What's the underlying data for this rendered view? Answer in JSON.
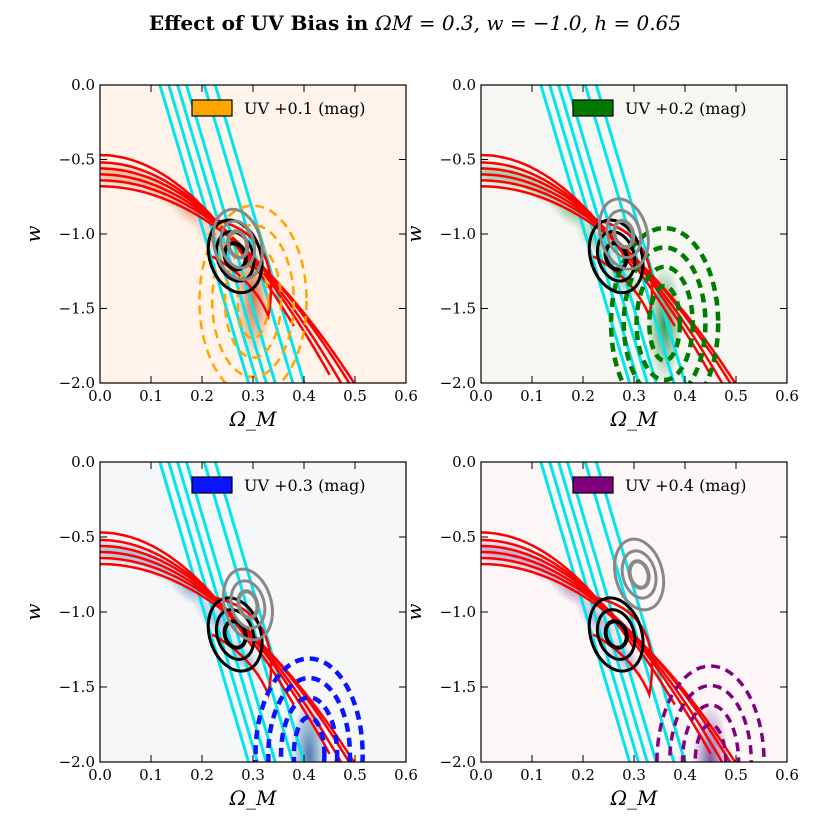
{
  "figure": {
    "title": "Effect of UV Bias in Ω_M = 0.3, w = −1.0, h = 0.65",
    "title_parts": {
      "bold": "Effect of UV Bias in ",
      "math": "ΩM = 0.3, w = −1.0, h = 0.65"
    }
  },
  "chart_data": [
    {
      "type": "contour",
      "panel": "top-left",
      "xlabel": "Ω_M",
      "ylabel": "w",
      "xlim": [
        0.0,
        0.6
      ],
      "ylim": [
        -2.0,
        0.0
      ],
      "xticks": [
        "0.0",
        "0.1",
        "0.2",
        "0.3",
        "0.4",
        "0.5",
        "0.6"
      ],
      "yticks": [
        "0.0",
        "−0.5",
        "−1.0",
        "−1.5",
        "−2.0"
      ],
      "legend": "UV +0.1 (mag)",
      "legend_position": "top-right",
      "bias_color": "#ffa500",
      "background": "#fff3ea",
      "density_color": "#cc6633",
      "biased_center": [
        0.3,
        -1.45
      ],
      "gray_center": [
        0.27,
        -1.07
      ],
      "black_center": [
        0.265,
        -1.15
      ],
      "dashed_style": "dashed-thin"
    },
    {
      "type": "contour",
      "panel": "top-right",
      "xlabel": "Ω_M",
      "ylabel": "w",
      "xlim": [
        0.0,
        0.6
      ],
      "ylim": [
        -2.0,
        0.0
      ],
      "xticks": [
        "0.0",
        "0.1",
        "0.2",
        "0.3",
        "0.4",
        "0.5",
        "0.6"
      ],
      "yticks": [
        "0.0",
        "−0.5",
        "−1.0",
        "−1.5",
        "−2.0"
      ],
      "legend": "UV +0.2 (mag)",
      "legend_position": "top-right",
      "bias_color": "#007a00",
      "background": "#f6f7f2",
      "density_color": "#1a8a3a",
      "biased_center": [
        0.36,
        -1.6
      ],
      "gray_center": [
        0.28,
        -1.0
      ],
      "black_center": [
        0.265,
        -1.15
      ],
      "dashed_style": "dashed-thick"
    },
    {
      "type": "contour",
      "panel": "bottom-left",
      "xlabel": "Ω_M",
      "ylabel": "w",
      "xlim": [
        0.0,
        0.6
      ],
      "ylim": [
        -2.0,
        0.0
      ],
      "xticks": [
        "0.0",
        "0.1",
        "0.2",
        "0.3",
        "0.4",
        "0.5",
        "0.6"
      ],
      "yticks": [
        "0.0",
        "−0.5",
        "−1.0",
        "−1.5",
        "−2.0"
      ],
      "legend": "UV +0.3 (mag)",
      "legend_position": "top-right",
      "bias_color": "#0a14ff",
      "background": "#f6f7f9",
      "density_color": "#2e6aa8",
      "biased_center": [
        0.41,
        -1.95
      ],
      "gray_center": [
        0.29,
        -0.95
      ],
      "black_center": [
        0.265,
        -1.15
      ],
      "dashed_style": "dashed-thick"
    },
    {
      "type": "contour",
      "panel": "bottom-right",
      "xlabel": "Ω_M",
      "ylabel": "w",
      "xlim": [
        0.0,
        0.6
      ],
      "ylim": [
        -2.0,
        0.0
      ],
      "xticks": [
        "0.0",
        "0.1",
        "0.2",
        "0.3",
        "0.4",
        "0.5",
        "0.6"
      ],
      "yticks": [
        "0.0",
        "−0.5",
        "−1.0",
        "−1.5",
        "−2.0"
      ],
      "legend": "UV +0.4 (mag)",
      "legend_position": "top-right",
      "bias_color": "#800080",
      "background": "#fcf6f7",
      "density_color": "#6a3d9a",
      "biased_center": [
        0.45,
        -2.0
      ],
      "gray_center": [
        0.31,
        -0.75
      ],
      "black_center": [
        0.265,
        -1.15
      ],
      "dashed_style": "dashed-medium"
    }
  ],
  "colors": {
    "cmb": "#00e5ee",
    "sn": "#ff0000",
    "combined_true": "#000000",
    "combined_biased": "#888888"
  }
}
